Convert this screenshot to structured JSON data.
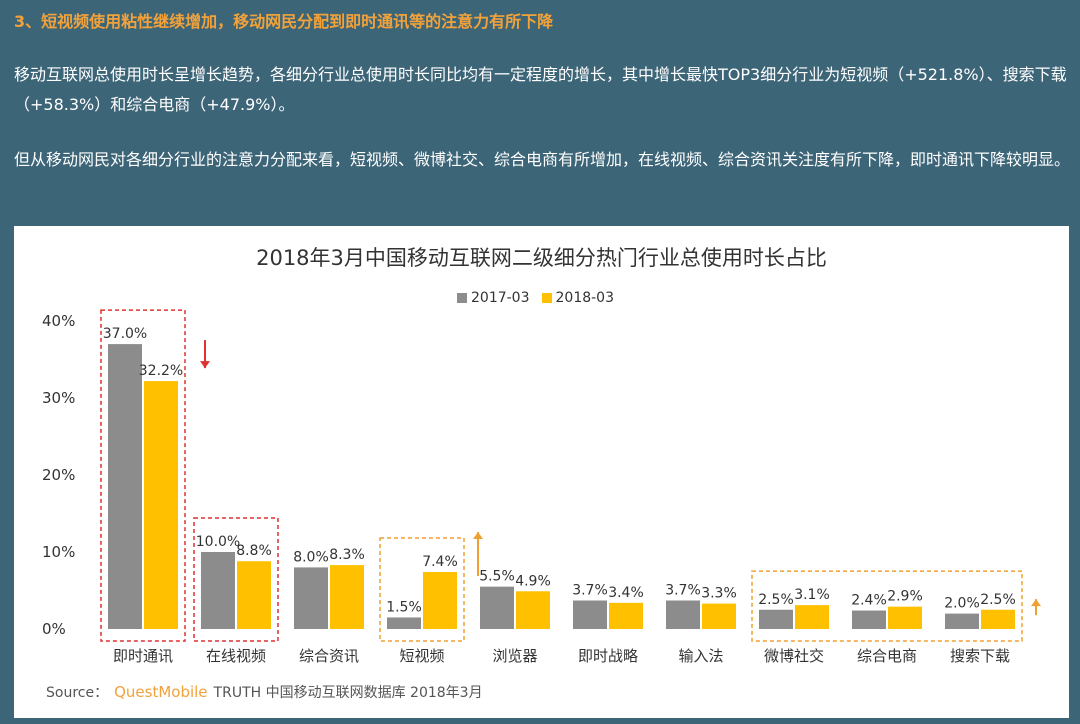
{
  "header": {
    "title": "3、短视频使用粘性继续增加，移动网民分配到即时通讯等的注意力有所下降"
  },
  "body": {
    "paragraph1": "移动互联网总使用时长呈增长趋势，各细分行业总使用时长同比均有一定程度的增长，其中增长最快TOP3细分行业为短视频（+521.8%）、搜索下载（+58.3%）和综合电商（+47.9%）。",
    "paragraph2": "但从移动网民对各细分行业的注意力分配来看，短视频、微博社交、综合电商有所增加，在线视频、综合资讯关注度有所下降，即时通讯下降较明显。"
  },
  "chart_data": {
    "type": "bar",
    "title": "2018年3月中国移动互联网二级细分热门行业总使用时长占比",
    "categories": [
      "即时通讯",
      "在线视频",
      "综合资讯",
      "短视频",
      "浏览器",
      "即时战略",
      "输入法",
      "微博社交",
      "综合电商",
      "搜索下载"
    ],
    "series": [
      {
        "name": "2017-03",
        "color": "#8c8c8c",
        "values": [
          37.0,
          10.0,
          8.0,
          1.5,
          5.5,
          3.7,
          3.7,
          2.5,
          2.4,
          2.0
        ]
      },
      {
        "name": "2018-03",
        "color": "#ffc000",
        "values": [
          32.2,
          8.8,
          8.3,
          7.4,
          4.9,
          3.4,
          3.3,
          3.1,
          2.9,
          2.5
        ]
      }
    ],
    "ylim": [
      0,
      40
    ],
    "yticks": [
      "0%",
      "10%",
      "20%",
      "30%",
      "40%"
    ],
    "xlabel": "",
    "ylabel": "",
    "legend_position": "top-center",
    "grid": false
  },
  "source": {
    "prefix": "Source：",
    "brand": "QuestMobile",
    "text": "TRUTH 中国移动互联网数据库 2018年3月"
  },
  "colors": {
    "background": "#3d6578",
    "title_accent": "#f2a23a",
    "decline_box": "#e03030",
    "growth_box": "#f0a030"
  }
}
